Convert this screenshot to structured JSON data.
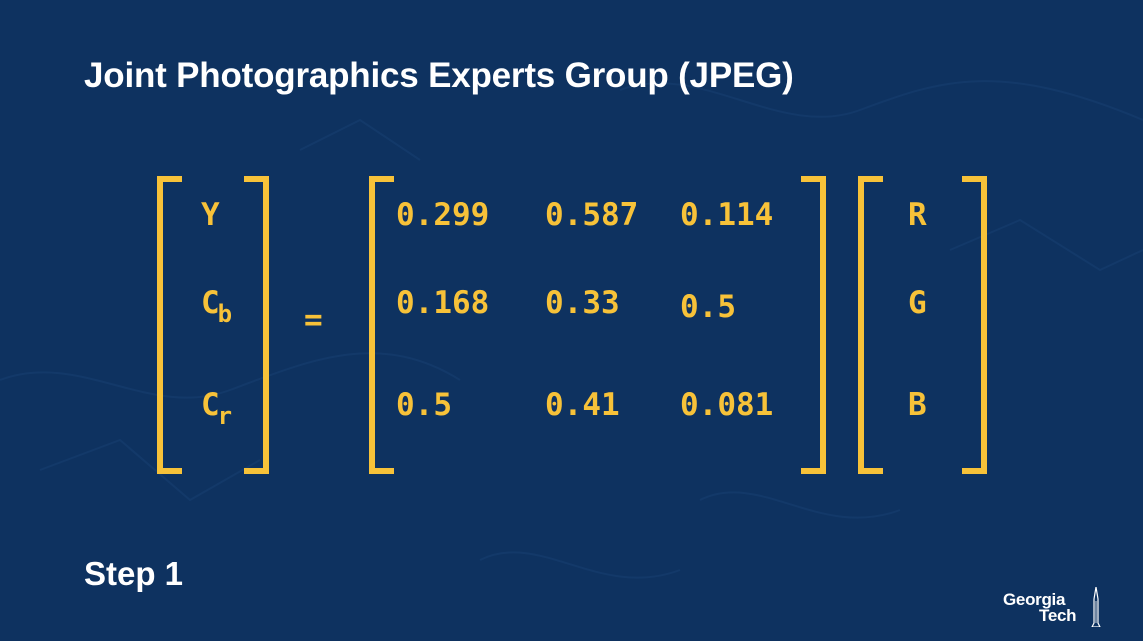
{
  "slide": {
    "title": "Joint Photographics Experts Group (JPEG)",
    "step": "Step 1"
  },
  "equation": {
    "lhs": [
      {
        "main": "Y",
        "sub": ""
      },
      {
        "main": "C",
        "sub": "b"
      },
      {
        "main": "C",
        "sub": "r"
      }
    ],
    "equals": "=",
    "matrix": [
      [
        "0.299",
        "0.587",
        "0.114"
      ],
      [
        "0.168",
        "0.33",
        "0.5"
      ],
      [
        "0.5",
        "0.41",
        "0.081"
      ]
    ],
    "rhs": [
      "R",
      "G",
      "B"
    ]
  },
  "logo": {
    "line1": "Georgia",
    "line2": "Tech"
  },
  "colors": {
    "background": "#0e3260",
    "accent": "#f7c239",
    "text": "#ffffff"
  }
}
